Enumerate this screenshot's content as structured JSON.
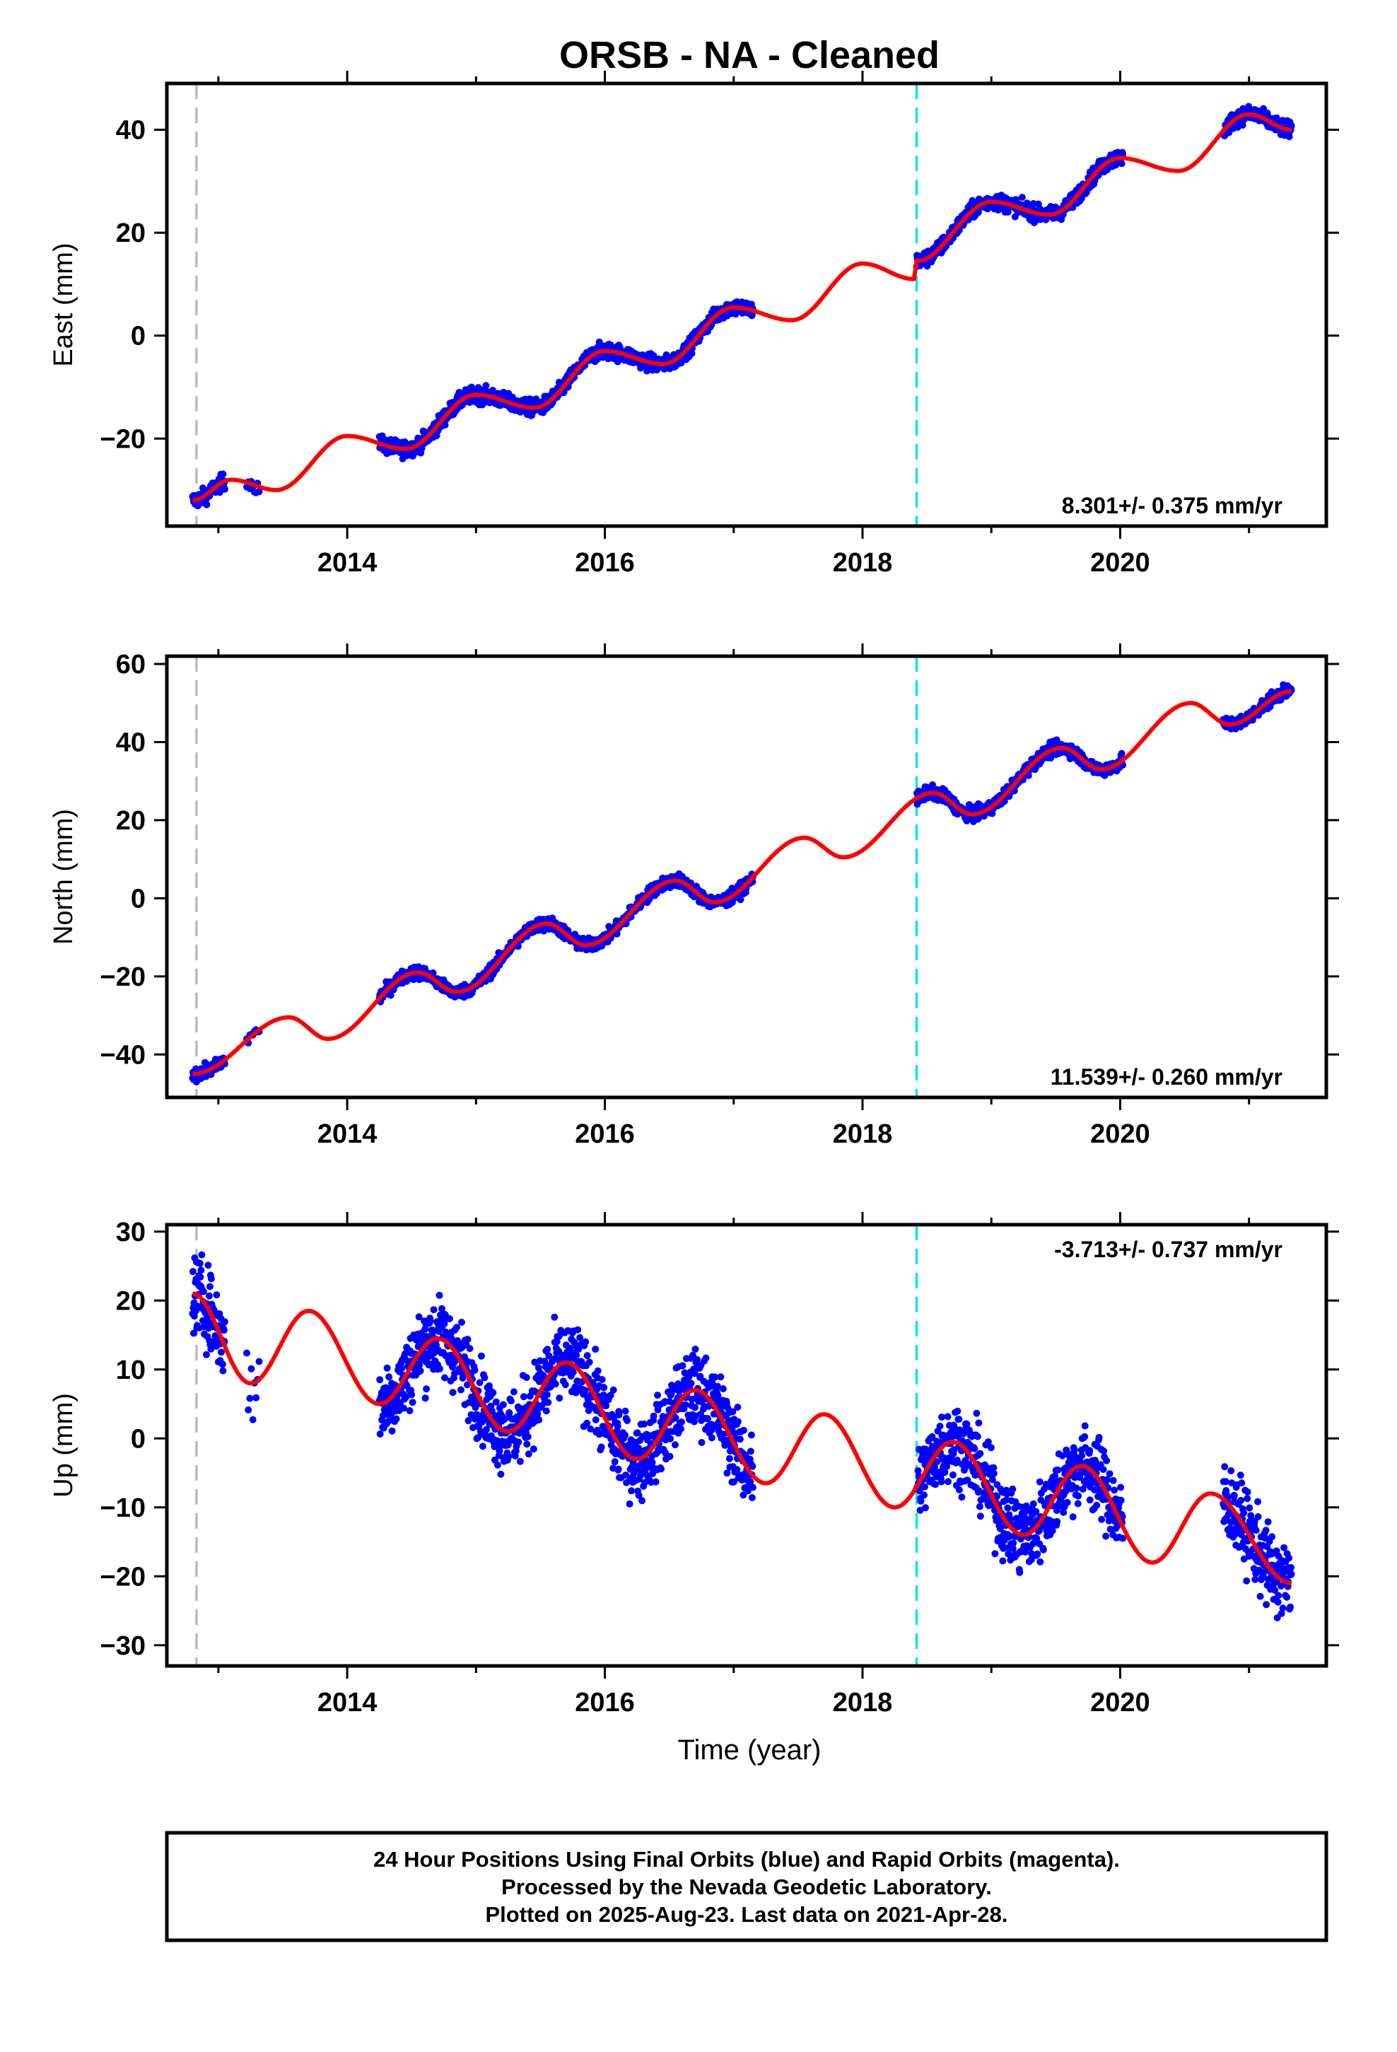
{
  "title": "ORSB  - NA - Cleaned",
  "colors": {
    "points": "#0000ff",
    "fit": "#ff0000",
    "offset_line": "#00e5ee",
    "start_line": "#bbbbbb",
    "axis": "#000000"
  },
  "xlabel": "Time (year)",
  "x_ticks": [
    2014,
    2016,
    2018,
    2020
  ],
  "footer": {
    "line1": "24 Hour Positions Using Final Orbits (blue) and Rapid Orbits (magenta).",
    "line2": "Processed by the Nevada Geodetic Laboratory.",
    "line3": "Plotted on 2025-Aug-23. Last data on 2021-Apr-28."
  },
  "chart_data": [
    {
      "type": "scatter",
      "component": "east",
      "ylabel": "East (mm)",
      "rate": "8.301+/- 0.375 mm/yr",
      "rate_position": "bottom-right",
      "xlim": [
        2012.6,
        2021.6
      ],
      "ylim": [
        -37,
        49
      ],
      "y_ticks": [
        -20,
        0,
        20,
        40
      ],
      "start_line_x": 2012.83,
      "offset_line_x": 2018.42,
      "fit_params": {
        "rate": 8.301,
        "offset_step": 3.5,
        "annual_amp": 4.0,
        "annual_phase": 3.2,
        "semi_amp": 0.6,
        "semi_phase": 1.0,
        "noise": 1.1
      },
      "data_segments": [
        [
          2012.8,
          2013.05
        ],
        [
          2013.22,
          2013.32
        ],
        [
          2014.25,
          2017.15
        ],
        [
          2018.42,
          2020.02
        ],
        [
          2020.8,
          2021.33
        ]
      ],
      "fit_curve": [
        [
          2012.8,
          -32
        ],
        [
          2013.1,
          -28
        ],
        [
          2013.45,
          -30
        ],
        [
          2014.0,
          -19.5
        ],
        [
          2014.45,
          -22
        ],
        [
          2015.0,
          -11.5
        ],
        [
          2015.45,
          -14
        ],
        [
          2016.0,
          -3
        ],
        [
          2016.45,
          -5.5
        ],
        [
          2017.0,
          5.5
        ],
        [
          2017.45,
          3
        ],
        [
          2018.0,
          14
        ],
        [
          2018.4,
          11
        ],
        [
          2018.42,
          14.5
        ],
        [
          2019.0,
          26
        ],
        [
          2019.45,
          23.5
        ],
        [
          2020.0,
          34.5
        ],
        [
          2020.45,
          32
        ],
        [
          2021.0,
          43
        ],
        [
          2021.33,
          40
        ]
      ]
    },
    {
      "type": "scatter",
      "component": "north",
      "ylabel": "North (mm)",
      "rate": "11.539+/- 0.260 mm/yr",
      "rate_position": "bottom-right",
      "xlim": [
        2012.6,
        2021.6
      ],
      "ylim": [
        -51,
        62
      ],
      "y_ticks": [
        -40,
        -20,
        0,
        20,
        40,
        60
      ],
      "start_line_x": 2012.83,
      "offset_line_x": 2018.42,
      "fit_params": {
        "rate": 11.539,
        "offset_step": 0,
        "annual_amp": 3.3,
        "annual_phase": 4.0,
        "semi_amp": 1.0,
        "semi_phase": 0.5,
        "noise": 1.2
      },
      "data_segments": [
        [
          2012.8,
          2013.05
        ],
        [
          2013.22,
          2013.32
        ],
        [
          2014.25,
          2017.15
        ],
        [
          2018.42,
          2020.02
        ],
        [
          2020.8,
          2021.33
        ]
      ],
      "fit_curve": [
        [
          2012.8,
          -45
        ],
        [
          2013.55,
          -30.5
        ],
        [
          2013.85,
          -36
        ],
        [
          2014.55,
          -19
        ],
        [
          2014.85,
          -24
        ],
        [
          2015.55,
          -6.5
        ],
        [
          2015.85,
          -12
        ],
        [
          2016.55,
          4.5
        ],
        [
          2016.85,
          -1
        ],
        [
          2017.55,
          15.5
        ],
        [
          2017.85,
          10.5
        ],
        [
          2018.55,
          27
        ],
        [
          2018.85,
          21.5
        ],
        [
          2019.55,
          38.5
        ],
        [
          2019.85,
          33
        ],
        [
          2020.55,
          50
        ],
        [
          2020.85,
          44.5
        ],
        [
          2021.33,
          53
        ]
      ]
    },
    {
      "type": "scatter",
      "component": "up",
      "ylabel": "Up (mm)",
      "rate": "-3.713+/- 0.737 mm/yr",
      "rate_position": "top-right",
      "xlim": [
        2012.6,
        2021.6
      ],
      "ylim": [
        -33,
        31
      ],
      "y_ticks": [
        -30,
        -20,
        -10,
        0,
        10,
        20,
        30
      ],
      "start_line_x": 2012.83,
      "offset_line_x": 2018.42,
      "fit_params": {
        "rate": -3.713,
        "offset_step": 0,
        "annual_amp": 5.7,
        "annual_phase": 1.6,
        "semi_amp": 1.5,
        "semi_phase": 2.0,
        "noise": 4.0
      },
      "data_segments": [
        [
          2012.8,
          2013.05
        ],
        [
          2013.22,
          2013.32
        ],
        [
          2014.25,
          2017.15
        ],
        [
          2018.42,
          2020.02
        ],
        [
          2020.8,
          2021.33
        ]
      ],
      "fit_curve": [
        [
          2012.8,
          21
        ],
        [
          2013.25,
          8
        ],
        [
          2013.7,
          18.5
        ],
        [
          2014.25,
          5
        ],
        [
          2014.7,
          14.5
        ],
        [
          2015.25,
          1
        ],
        [
          2015.7,
          11
        ],
        [
          2016.25,
          -3
        ],
        [
          2016.7,
          7
        ],
        [
          2017.25,
          -6.5
        ],
        [
          2017.7,
          3.5
        ],
        [
          2018.25,
          -10
        ],
        [
          2018.7,
          -0.5
        ],
        [
          2019.25,
          -14
        ],
        [
          2019.7,
          -4
        ],
        [
          2020.25,
          -18
        ],
        [
          2020.7,
          -8
        ],
        [
          2021.33,
          -21
        ]
      ]
    }
  ]
}
